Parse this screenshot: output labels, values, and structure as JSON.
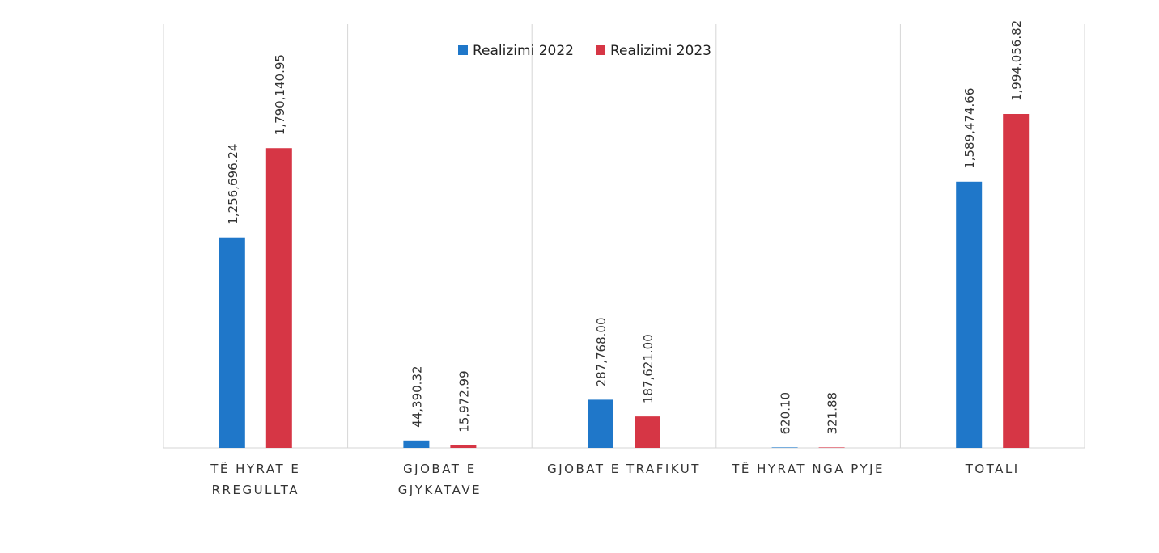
{
  "chart_data": {
    "type": "bar",
    "title": "",
    "xlabel": "",
    "ylabel": "",
    "categories": [
      [
        "TË HYRAT E",
        "RREGULLTA"
      ],
      [
        "GJOBAT E",
        "GJYKATAVE"
      ],
      [
        "GJOBAT  E TRAFIKUT"
      ],
      [
        "TË HYRAT NGA PYJE"
      ],
      [
        "TOTALI"
      ]
    ],
    "series": [
      {
        "name": "Realizimi 2022",
        "color": "#1f77c9",
        "values": [
          1256696.24,
          44390.32,
          287768.0,
          620.1,
          1589474.66
        ],
        "labels": [
          "1,256,696.24",
          "44,390.32",
          "287,768.00",
          "620.10",
          "1,589,474.66"
        ]
      },
      {
        "name": "Realizimi 2023",
        "color": "#d63645",
        "values": [
          1790140.95,
          15972.99,
          187621.0,
          321.88,
          1994056.82
        ],
        "labels": [
          "1,790,140.95",
          "15,972.99",
          "187,621.00",
          "321.88",
          "1,994,056.82"
        ]
      }
    ],
    "ylim": [
      0,
      2500000
    ],
    "grid": false,
    "legend": "top"
  }
}
